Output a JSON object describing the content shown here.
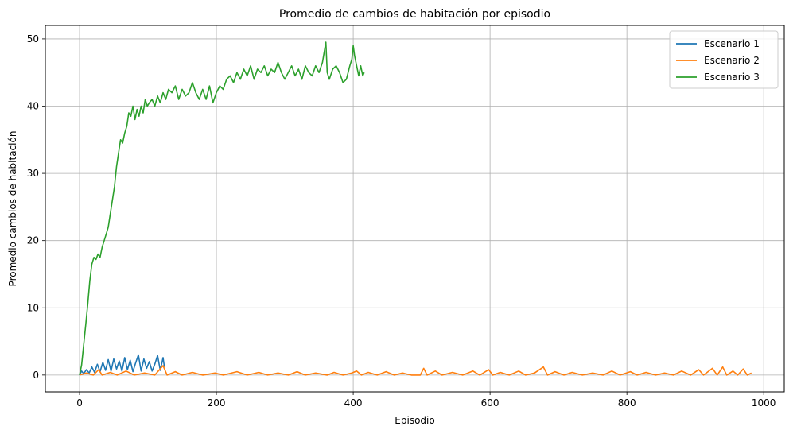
{
  "chart_data": {
    "type": "line",
    "title": "Promedio de cambios de habitación por episodio",
    "xlabel": "Episodio",
    "ylabel": "Promedio cambios de habitación",
    "xlim": [
      -50,
      1030
    ],
    "ylim": [
      -2.5,
      52
    ],
    "xticks": [
      0,
      200,
      400,
      600,
      800,
      1000
    ],
    "yticks": [
      0,
      10,
      20,
      30,
      40,
      50
    ],
    "grid": true,
    "legend_position": "top-right",
    "series": [
      {
        "name": "Escenario 1",
        "color": "#1f77b4",
        "points": [
          [
            0,
            0
          ],
          [
            3,
            0.6
          ],
          [
            6,
            0.2
          ],
          [
            10,
            0.8
          ],
          [
            14,
            0.3
          ],
          [
            18,
            1.2
          ],
          [
            22,
            0.4
          ],
          [
            26,
            1.6
          ],
          [
            30,
            0.5
          ],
          [
            34,
            1.9
          ],
          [
            38,
            0.7
          ],
          [
            42,
            2.3
          ],
          [
            46,
            0.6
          ],
          [
            50,
            2.4
          ],
          [
            54,
            0.9
          ],
          [
            58,
            2.1
          ],
          [
            62,
            0.6
          ],
          [
            66,
            2.6
          ],
          [
            70,
            0.8
          ],
          [
            74,
            2.2
          ],
          [
            78,
            0.5
          ],
          [
            82,
            1.8
          ],
          [
            86,
            3.0
          ],
          [
            90,
            0.6
          ],
          [
            94,
            2.4
          ],
          [
            98,
            1.0
          ],
          [
            102,
            2.0
          ],
          [
            106,
            0.6
          ],
          [
            110,
            1.6
          ],
          [
            114,
            2.9
          ],
          [
            118,
            0.7
          ],
          [
            122,
            2.6
          ],
          [
            124,
            1.2
          ]
        ]
      },
      {
        "name": "Escenario 2",
        "color": "#ff7f0e",
        "points": [
          [
            0,
            0
          ],
          [
            10,
            0.3
          ],
          [
            20,
            0
          ],
          [
            28,
            0.8
          ],
          [
            33,
            0
          ],
          [
            45,
            0.4
          ],
          [
            55,
            0
          ],
          [
            68,
            0.6
          ],
          [
            80,
            0
          ],
          [
            95,
            0.3
          ],
          [
            110,
            0
          ],
          [
            122,
            1.4
          ],
          [
            128,
            0
          ],
          [
            140,
            0.5
          ],
          [
            150,
            0
          ],
          [
            165,
            0.4
          ],
          [
            180,
            0
          ],
          [
            198,
            0.3
          ],
          [
            210,
            0
          ],
          [
            230,
            0.5
          ],
          [
            245,
            0
          ],
          [
            262,
            0.4
          ],
          [
            275,
            0
          ],
          [
            290,
            0.3
          ],
          [
            305,
            0
          ],
          [
            318,
            0.5
          ],
          [
            330,
            0
          ],
          [
            345,
            0.3
          ],
          [
            362,
            0
          ],
          [
            372,
            0.4
          ],
          [
            385,
            0
          ],
          [
            398,
            0.3
          ],
          [
            405,
            0.6
          ],
          [
            412,
            0
          ],
          [
            422,
            0.4
          ],
          [
            435,
            0
          ],
          [
            448,
            0.5
          ],
          [
            460,
            0
          ],
          [
            472,
            0.3
          ],
          [
            485,
            0
          ],
          [
            498,
            0
          ],
          [
            503,
            1.0
          ],
          [
            508,
            0
          ],
          [
            520,
            0.6
          ],
          [
            530,
            0
          ],
          [
            545,
            0.4
          ],
          [
            560,
            0
          ],
          [
            575,
            0.6
          ],
          [
            585,
            0
          ],
          [
            598,
            0.8
          ],
          [
            604,
            0
          ],
          [
            615,
            0.4
          ],
          [
            628,
            0
          ],
          [
            642,
            0.6
          ],
          [
            652,
            0
          ],
          [
            665,
            0.3
          ],
          [
            678,
            1.2
          ],
          [
            684,
            0
          ],
          [
            695,
            0.5
          ],
          [
            708,
            0
          ],
          [
            720,
            0.4
          ],
          [
            735,
            0
          ],
          [
            750,
            0.3
          ],
          [
            765,
            0
          ],
          [
            778,
            0.6
          ],
          [
            790,
            0
          ],
          [
            805,
            0.5
          ],
          [
            815,
            0
          ],
          [
            828,
            0.4
          ],
          [
            842,
            0
          ],
          [
            855,
            0.3
          ],
          [
            868,
            0
          ],
          [
            880,
            0.6
          ],
          [
            893,
            0
          ],
          [
            905,
            0.8
          ],
          [
            912,
            0
          ],
          [
            925,
            1.0
          ],
          [
            932,
            0
          ],
          [
            940,
            1.2
          ],
          [
            946,
            0
          ],
          [
            955,
            0.6
          ],
          [
            962,
            0
          ],
          [
            970,
            0.9
          ],
          [
            976,
            0
          ],
          [
            982,
            0.3
          ]
        ]
      },
      {
        "name": "Escenario 3",
        "color": "#2ca02c",
        "points": [
          [
            0,
            0
          ],
          [
            3,
            1.5
          ],
          [
            6,
            4.5
          ],
          [
            9,
            7.5
          ],
          [
            12,
            10.5
          ],
          [
            15,
            14
          ],
          [
            18,
            16.5
          ],
          [
            21,
            17.5
          ],
          [
            24,
            17.2
          ],
          [
            27,
            18
          ],
          [
            30,
            17.5
          ],
          [
            33,
            19
          ],
          [
            36,
            20
          ],
          [
            39,
            21
          ],
          [
            42,
            22
          ],
          [
            45,
            24
          ],
          [
            48,
            26
          ],
          [
            51,
            28
          ],
          [
            54,
            31
          ],
          [
            57,
            33
          ],
          [
            60,
            35
          ],
          [
            63,
            34.5
          ],
          [
            66,
            36
          ],
          [
            69,
            37
          ],
          [
            72,
            39
          ],
          [
            75,
            38.5
          ],
          [
            78,
            40
          ],
          [
            81,
            38
          ],
          [
            84,
            39.5
          ],
          [
            87,
            38.5
          ],
          [
            90,
            40
          ],
          [
            93,
            39
          ],
          [
            96,
            41
          ],
          [
            99,
            40
          ],
          [
            102,
            40.5
          ],
          [
            106,
            41
          ],
          [
            110,
            40
          ],
          [
            114,
            41.5
          ],
          [
            118,
            40.5
          ],
          [
            122,
            42
          ],
          [
            126,
            41
          ],
          [
            130,
            42.5
          ],
          [
            135,
            42
          ],
          [
            140,
            43
          ],
          [
            145,
            41
          ],
          [
            150,
            42.5
          ],
          [
            155,
            41.5
          ],
          [
            160,
            42
          ],
          [
            165,
            43.5
          ],
          [
            170,
            42
          ],
          [
            175,
            41
          ],
          [
            180,
            42.5
          ],
          [
            185,
            41
          ],
          [
            190,
            43
          ],
          [
            195,
            40.5
          ],
          [
            200,
            42
          ],
          [
            205,
            43
          ],
          [
            210,
            42.5
          ],
          [
            215,
            44
          ],
          [
            220,
            44.5
          ],
          [
            225,
            43.5
          ],
          [
            230,
            45
          ],
          [
            235,
            44
          ],
          [
            240,
            45.5
          ],
          [
            245,
            44.5
          ],
          [
            250,
            46
          ],
          [
            255,
            44
          ],
          [
            260,
            45.5
          ],
          [
            265,
            45
          ],
          [
            270,
            46
          ],
          [
            275,
            44.5
          ],
          [
            280,
            45.5
          ],
          [
            285,
            45
          ],
          [
            290,
            46.5
          ],
          [
            295,
            45
          ],
          [
            300,
            44
          ],
          [
            305,
            45
          ],
          [
            310,
            46
          ],
          [
            315,
            44.5
          ],
          [
            320,
            45.5
          ],
          [
            325,
            44
          ],
          [
            330,
            46
          ],
          [
            335,
            45
          ],
          [
            340,
            44.5
          ],
          [
            345,
            46
          ],
          [
            350,
            45
          ],
          [
            355,
            46.5
          ],
          [
            360,
            49.5
          ],
          [
            362,
            45
          ],
          [
            365,
            44
          ],
          [
            370,
            45.5
          ],
          [
            375,
            46
          ],
          [
            380,
            45
          ],
          [
            385,
            43.5
          ],
          [
            390,
            44
          ],
          [
            395,
            46
          ],
          [
            398,
            47
          ],
          [
            400,
            49
          ],
          [
            402,
            47.5
          ],
          [
            405,
            46
          ],
          [
            408,
            44.5
          ],
          [
            411,
            46
          ],
          [
            414,
            44.5
          ],
          [
            416,
            45
          ]
        ]
      }
    ]
  }
}
